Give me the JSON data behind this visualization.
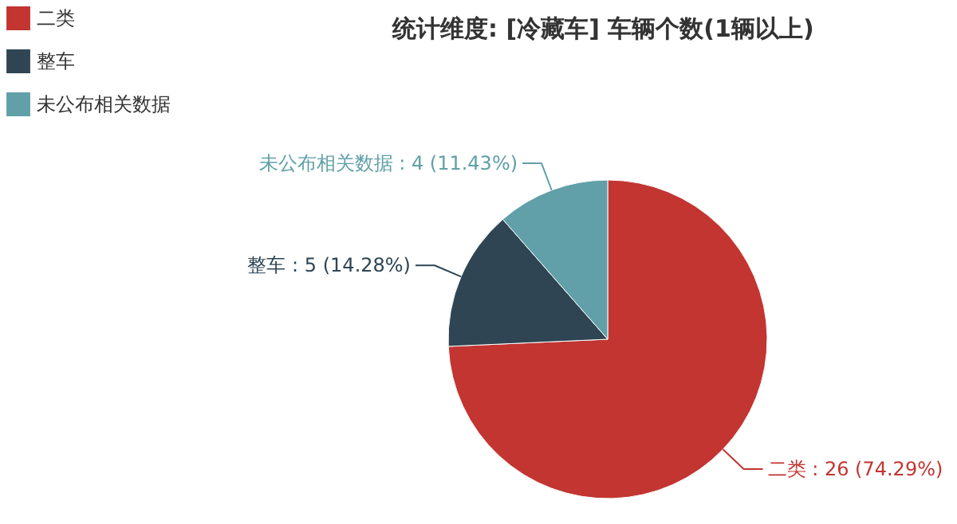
{
  "chart_data": {
    "type": "pie",
    "title": "统计维度: [冷藏车] 车辆个数(1辆以上)",
    "categories": [
      "二类",
      "整车",
      "未公布相关数据"
    ],
    "values": [
      26,
      5,
      4
    ],
    "colors": [
      "#c23531",
      "#2f4554",
      "#61a0a8"
    ],
    "value_labels": [
      "二类 : 26 (74.29%)",
      "整车 : 5 (14.28%)",
      "未公布相关数据 : 4 (11.43%)"
    ],
    "legend": "top left"
  }
}
